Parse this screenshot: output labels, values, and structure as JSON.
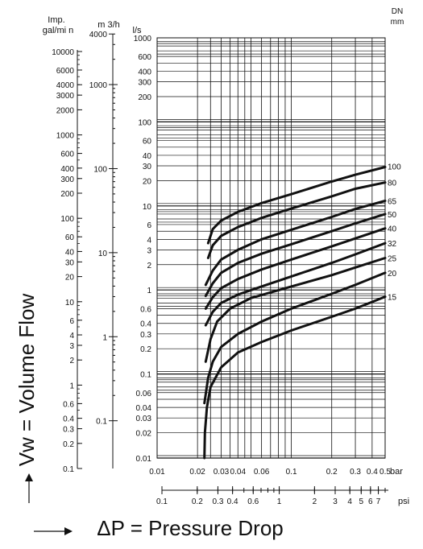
{
  "chart_data": {
    "type": "line",
    "ylabel": "Vw = Volume Flow",
    "xlabel": "ΔP = Pressure Drop",
    "x_axis": {
      "unit": "bar",
      "scale": "log",
      "range": [
        0.01,
        0.5
      ],
      "tick_labels": [
        {
          "v": 0.01,
          "t": "0.01"
        },
        {
          "v": 0.02,
          "t": "0.02"
        },
        {
          "v": 0.03,
          "t": "0.03"
        },
        {
          "v": 0.04,
          "t": "0.04"
        },
        {
          "v": 0.06,
          "t": "0.06"
        },
        {
          "v": 0.1,
          "t": "0.1"
        },
        {
          "v": 0.2,
          "t": "0.2"
        },
        {
          "v": 0.3,
          "t": "0.3"
        },
        {
          "v": 0.4,
          "t": "0.4"
        },
        {
          "v": 0.5,
          "t": "0.5"
        }
      ]
    },
    "psi_axis": {
      "unit": "psi",
      "scale": "log",
      "tick_labels": [
        {
          "v": 0.1,
          "t": "0.1"
        },
        {
          "v": 0.2,
          "t": "0.2"
        },
        {
          "v": 0.3,
          "t": "0.3"
        },
        {
          "v": 0.4,
          "t": "0.4"
        },
        {
          "v": 0.6,
          "t": "0.6"
        },
        {
          "v": 1,
          "t": "1"
        },
        {
          "v": 2,
          "t": "2"
        },
        {
          "v": 3,
          "t": "3"
        },
        {
          "v": 4,
          "t": "4"
        },
        {
          "v": 5,
          "t": "5"
        },
        {
          "v": 6,
          "t": "6"
        },
        {
          "v": 7,
          "t": "7"
        }
      ]
    },
    "y_axis": {
      "unit": "l/s",
      "scale": "log",
      "range": [
        0.01,
        1000
      ],
      "tick_labels": [
        {
          "v": 1000,
          "t": "1000"
        },
        {
          "v": 600,
          "t": "600"
        },
        {
          "v": 400,
          "t": "400"
        },
        {
          "v": 300,
          "t": "300"
        },
        {
          "v": 200,
          "t": "200"
        },
        {
          "v": 100,
          "t": "100"
        },
        {
          "v": 60,
          "t": "60"
        },
        {
          "v": 40,
          "t": "40"
        },
        {
          "v": 30,
          "t": "30"
        },
        {
          "v": 20,
          "t": "20"
        },
        {
          "v": 10,
          "t": "10"
        },
        {
          "v": 6,
          "t": "6"
        },
        {
          "v": 4,
          "t": "4"
        },
        {
          "v": 3,
          "t": "3"
        },
        {
          "v": 2,
          "t": "2"
        },
        {
          "v": 1,
          "t": "1"
        },
        {
          "v": 0.6,
          "t": "0.6"
        },
        {
          "v": 0.4,
          "t": "0.4"
        },
        {
          "v": 0.3,
          "t": "0.3"
        },
        {
          "v": 0.2,
          "t": "0.2"
        },
        {
          "v": 0.1,
          "t": "0.1"
        },
        {
          "v": 0.06,
          "t": "0.06"
        },
        {
          "v": 0.04,
          "t": "0.04"
        },
        {
          "v": 0.03,
          "t": "0.03"
        },
        {
          "v": 0.02,
          "t": "0.02"
        },
        {
          "v": 0.01,
          "t": "0.01"
        }
      ]
    },
    "m3h_axis": {
      "unit": "m 3/h",
      "scale": "log",
      "tick_labels": [
        {
          "v": 4000,
          "t": "4000"
        },
        {
          "v": 1000,
          "t": "1000"
        },
        {
          "v": 100,
          "t": "100"
        },
        {
          "v": 10,
          "t": "10"
        },
        {
          "v": 1,
          "t": "1"
        },
        {
          "v": 0.1,
          "t": "0.1"
        }
      ]
    },
    "imp_axis": {
      "unit_lines": [
        "Imp.",
        "gal/mi n"
      ],
      "scale": "log",
      "tick_labels": [
        {
          "v": 10000,
          "t": "10000"
        },
        {
          "v": 6000,
          "t": "6000"
        },
        {
          "v": 4000,
          "t": "4000"
        },
        {
          "v": 3000,
          "t": "3000"
        },
        {
          "v": 2000,
          "t": "2000"
        },
        {
          "v": 1000,
          "t": "1000"
        },
        {
          "v": 600,
          "t": "600"
        },
        {
          "v": 400,
          "t": "400"
        },
        {
          "v": 300,
          "t": "300"
        },
        {
          "v": 200,
          "t": "200"
        },
        {
          "v": 100,
          "t": "100"
        },
        {
          "v": 60,
          "t": "60"
        },
        {
          "v": 40,
          "t": "40"
        },
        {
          "v": 30,
          "t": "30"
        },
        {
          "v": 20,
          "t": "20"
        },
        {
          "v": 10,
          "t": "10"
        },
        {
          "v": 6,
          "t": "6"
        },
        {
          "v": 4,
          "t": "4"
        },
        {
          "v": 3,
          "t": "3"
        },
        {
          "v": 2,
          "t": "2"
        },
        {
          "v": 1,
          "t": "1"
        },
        {
          "v": 0.6,
          "t": "0.6"
        },
        {
          "v": 0.4,
          "t": "0.4"
        },
        {
          "v": 0.3,
          "t": "0.3"
        },
        {
          "v": 0.2,
          "t": "0.2"
        },
        {
          "v": 0.1,
          "t": "0.1"
        }
      ]
    },
    "dn_header": [
      "DN",
      "mm"
    ],
    "series": [
      {
        "name": "100",
        "points": [
          [
            0.024,
            3.6
          ],
          [
            0.026,
            5.3
          ],
          [
            0.03,
            6.7
          ],
          [
            0.04,
            8.5
          ],
          [
            0.06,
            10.8
          ],
          [
            0.1,
            13.8
          ],
          [
            0.2,
            19.5
          ],
          [
            0.3,
            23.5
          ],
          [
            0.5,
            29
          ]
        ]
      },
      {
        "name": "80",
        "points": [
          [
            0.024,
            2.4
          ],
          [
            0.026,
            3.4
          ],
          [
            0.03,
            4.4
          ],
          [
            0.04,
            5.6
          ],
          [
            0.06,
            7.2
          ],
          [
            0.1,
            9.3
          ],
          [
            0.2,
            13
          ],
          [
            0.3,
            16
          ],
          [
            0.5,
            19
          ]
        ]
      },
      {
        "name": "65",
        "points": [
          [
            0.023,
            1.15
          ],
          [
            0.026,
            1.7
          ],
          [
            0.03,
            2.3
          ],
          [
            0.04,
            3.0
          ],
          [
            0.06,
            4.0
          ],
          [
            0.1,
            5.2
          ],
          [
            0.2,
            7.4
          ],
          [
            0.3,
            9.2
          ],
          [
            0.5,
            11.5
          ]
        ]
      },
      {
        "name": "50",
        "points": [
          [
            0.023,
            0.85
          ],
          [
            0.026,
            1.2
          ],
          [
            0.03,
            1.6
          ],
          [
            0.04,
            2.1
          ],
          [
            0.06,
            2.7
          ],
          [
            0.1,
            3.5
          ],
          [
            0.2,
            5.0
          ],
          [
            0.3,
            6.2
          ],
          [
            0.5,
            8.0
          ]
        ]
      },
      {
        "name": "40",
        "points": [
          [
            0.023,
            0.6
          ],
          [
            0.026,
            0.82
          ],
          [
            0.03,
            1.05
          ],
          [
            0.04,
            1.35
          ],
          [
            0.06,
            1.75
          ],
          [
            0.1,
            2.3
          ],
          [
            0.2,
            3.3
          ],
          [
            0.3,
            4.1
          ],
          [
            0.5,
            5.4
          ]
        ]
      },
      {
        "name": "32",
        "points": [
          [
            0.023,
            0.38
          ],
          [
            0.026,
            0.55
          ],
          [
            0.03,
            0.7
          ],
          [
            0.04,
            0.88
          ],
          [
            0.06,
            1.1
          ],
          [
            0.1,
            1.45
          ],
          [
            0.2,
            2.1
          ],
          [
            0.3,
            2.65
          ],
          [
            0.5,
            3.6
          ]
        ]
      },
      {
        "name": "25",
        "points": [
          [
            0.023,
            0.14
          ],
          [
            0.025,
            0.26
          ],
          [
            0.028,
            0.42
          ],
          [
            0.035,
            0.6
          ],
          [
            0.05,
            0.8
          ],
          [
            0.1,
            1.1
          ],
          [
            0.2,
            1.5
          ],
          [
            0.3,
            1.85
          ],
          [
            0.5,
            2.4
          ]
        ]
      },
      {
        "name": "20",
        "points": [
          [
            0.0225,
            0.045
          ],
          [
            0.024,
            0.09
          ],
          [
            0.026,
            0.14
          ],
          [
            0.03,
            0.21
          ],
          [
            0.04,
            0.3
          ],
          [
            0.06,
            0.42
          ],
          [
            0.1,
            0.6
          ],
          [
            0.2,
            0.9
          ],
          [
            0.3,
            1.15
          ],
          [
            0.5,
            1.6
          ]
        ]
      },
      {
        "name": "15",
        "points": [
          [
            0.0225,
            0.01
          ],
          [
            0.0227,
            0.02
          ],
          [
            0.0235,
            0.04
          ],
          [
            0.025,
            0.07
          ],
          [
            0.03,
            0.12
          ],
          [
            0.04,
            0.18
          ],
          [
            0.06,
            0.24
          ],
          [
            0.1,
            0.33
          ],
          [
            0.2,
            0.48
          ],
          [
            0.3,
            0.6
          ],
          [
            0.5,
            0.83
          ]
        ]
      }
    ]
  }
}
